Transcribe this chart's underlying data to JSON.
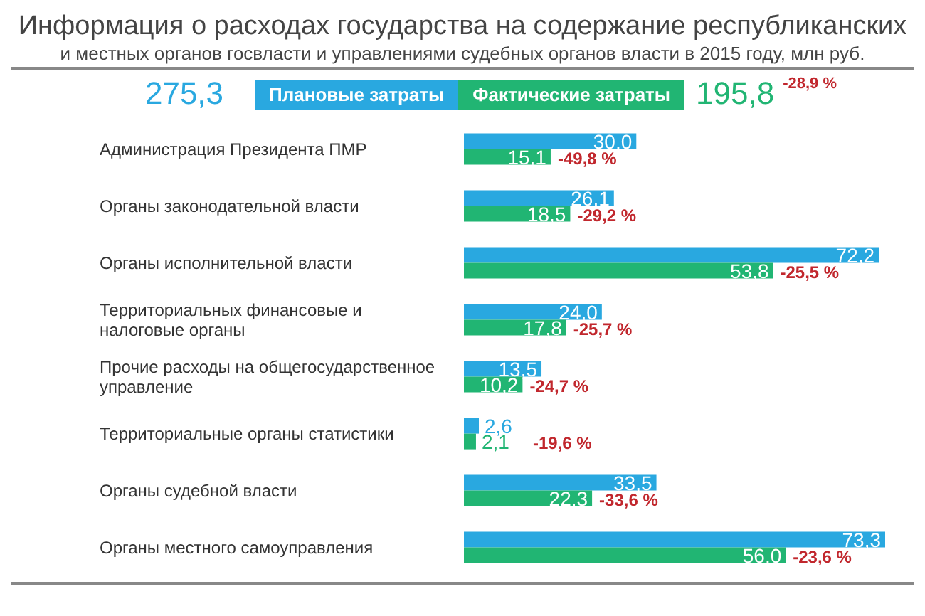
{
  "chart_data": {
    "type": "bar",
    "orientation": "horizontal",
    "title": "Информация о расходах государства на содержание республиканских",
    "subtitle": "и местных органов госвласти и управлениями судебных органов власти в 2015 году, млн руб.",
    "categories": [
      "Администрация Президента ПМР",
      "Органы законодательной власти",
      "Органы исполнительной власти",
      "Территориальных финансовые и налоговые органы",
      "Прочие расходы на общегосударственное управление",
      "Территориальные органы статистики",
      "Органы судебной власти",
      "Органы местного самоуправления"
    ],
    "series": [
      {
        "name": "Плановые затраты",
        "color": "#29a8e0",
        "values": [
          30.0,
          26.1,
          72.2,
          24.0,
          13.5,
          2.6,
          33.5,
          73.3
        ],
        "value_labels": [
          "30,0",
          "26,1",
          "72,2",
          "24,0",
          "13,5",
          "2,6",
          "33,5",
          "73,3"
        ]
      },
      {
        "name": "Фактические затраты",
        "color": "#21b573",
        "values": [
          15.1,
          18.5,
          53.8,
          17.8,
          10.2,
          2.1,
          22.3,
          56.0
        ],
        "value_labels": [
          "15,1",
          "18,5",
          "53,8",
          "17,8",
          "10,2",
          "2,1",
          "22,3",
          "56,0"
        ]
      }
    ],
    "legend": "top",
    "annotations": [
      "275,3",
      "195,8",
      "-28,9 %",
      "-49,8 %",
      "-29,2 %",
      "-25,5 %",
      "-25,7 %",
      "-24,7 %",
      "-19,6 %",
      "-33,6 %",
      "-23,6 %"
    ]
  }
}
